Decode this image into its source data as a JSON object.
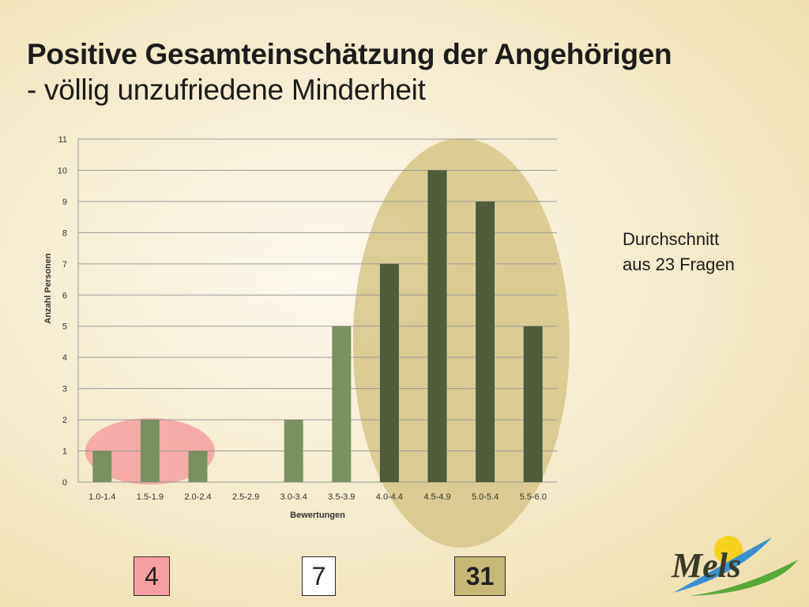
{
  "title": {
    "main": "Positive Gesamteinschätzung der Angehörigen",
    "sub": "- völlig unzufriedene Minderheit"
  },
  "side_note": {
    "line1": "Durchschnitt",
    "line2": "aus 23 Fragen"
  },
  "group_counts": [
    {
      "value": "4",
      "color": "#f4a0a0"
    },
    {
      "value": "7",
      "color": "#ffffff"
    },
    {
      "value": "31",
      "color": "#c8b878"
    }
  ],
  "logo": {
    "text": "Mels",
    "icon": "mels-logo-icon"
  },
  "colors": {
    "bar_light": "#7a9060",
    "bar_dark": "#4e5c3a",
    "highlight_low": "#f4a0a0",
    "highlight_high": "#d8c88c",
    "gridline": "#9a9a9a"
  },
  "chart_data": {
    "type": "bar",
    "categories": [
      "1.0-1.4",
      "1.5-1.9",
      "2.0-2.4",
      "2.5-2.9",
      "3.0-3.4",
      "3.5-3.9",
      "4.0-4.4",
      "4.5-4.9",
      "5.0-5.4",
      "5.5-6.0"
    ],
    "values": [
      1,
      2,
      1,
      0,
      2,
      5,
      7,
      10,
      9,
      5
    ],
    "bar_shades": [
      "light",
      "light",
      "light",
      "light",
      "light",
      "light",
      "dark",
      "dark",
      "dark",
      "dark"
    ],
    "title": "",
    "xlabel": "Bewertungen",
    "ylabel": "Anzahl Personen",
    "ylim": [
      0,
      11
    ],
    "yticks": [
      0,
      1,
      2,
      3,
      4,
      5,
      6,
      7,
      8,
      9,
      10,
      11
    ],
    "grid": true,
    "legend": "none"
  }
}
